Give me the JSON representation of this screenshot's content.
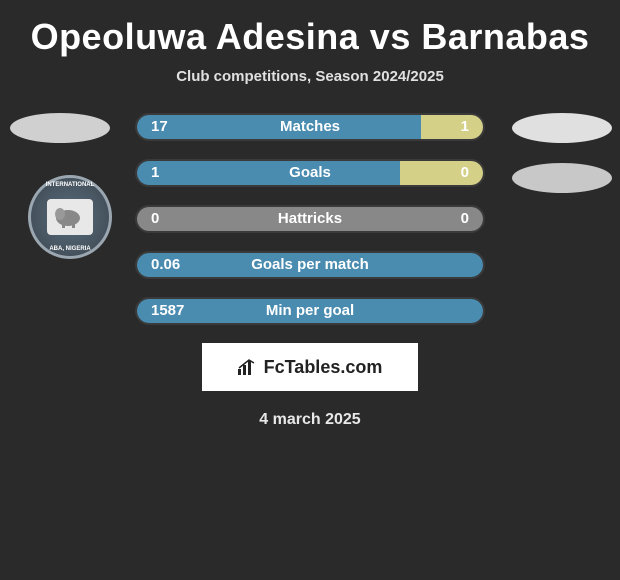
{
  "title": "Opeoluwa Adesina vs Barnabas",
  "subtitle": "Club competitions, Season 2024/2025",
  "date": "4 march 2025",
  "brand": "FcTables.com",
  "colors": {
    "left": "#4a8bb0",
    "right": "#d4d088",
    "neutral": "#888888",
    "bg": "#2a2a2a"
  },
  "club_badge": {
    "text_top": "INTERNATIONAL",
    "text_bottom": "ABA, NIGERIA"
  },
  "stats": [
    {
      "label": "Matches",
      "left_value": "17",
      "right_value": "1",
      "left_pct": 82,
      "right_pct": 18
    },
    {
      "label": "Goals",
      "left_value": "1",
      "right_value": "0",
      "left_pct": 76,
      "right_pct": 24
    },
    {
      "label": "Hattricks",
      "left_value": "0",
      "right_value": "0",
      "left_pct": 0,
      "right_pct": 0
    },
    {
      "label": "Goals per match",
      "left_value": "0.06",
      "right_value": "",
      "left_pct": 100,
      "right_pct": 0
    },
    {
      "label": "Min per goal",
      "left_value": "1587",
      "right_value": "",
      "left_pct": 100,
      "right_pct": 0
    }
  ]
}
